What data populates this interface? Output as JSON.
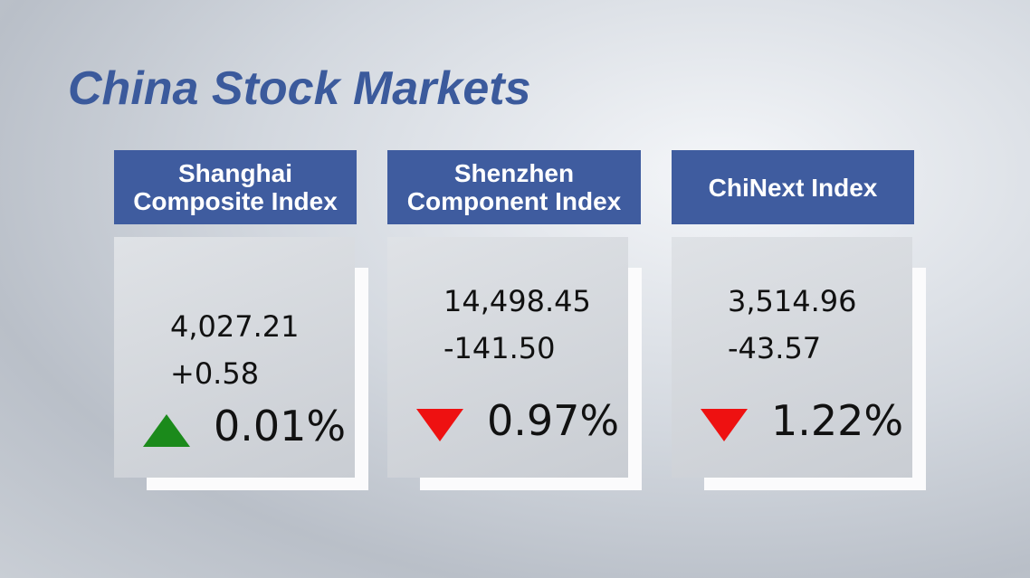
{
  "title": "China Stock Markets",
  "cards": [
    {
      "name": "Shanghai Composite Index",
      "value": "4,027.21",
      "change": "+0.58",
      "percent": "0.01%",
      "direction": "up"
    },
    {
      "name": "Shenzhen Component Index",
      "value": "14,498.45",
      "change": "-141.50",
      "percent": "0.97%",
      "direction": "down"
    },
    {
      "name": "ChiNext Index",
      "value": "3,514.96",
      "change": "-43.57",
      "percent": "1.22%",
      "direction": "down"
    }
  ]
}
